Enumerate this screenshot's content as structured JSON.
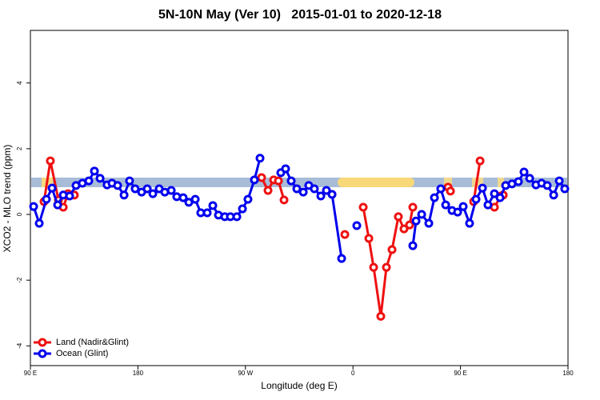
{
  "chart_data": {
    "type": "line",
    "title": "5N-10N May (Ver 10)   2015-01-01 to 2020-12-18",
    "x_label": "Longitude (deg E)",
    "y_label": "XCO2 - MLO trend (ppm)",
    "xlim": [
      90,
      540
    ],
    "ylim": [
      -4.6,
      5.6
    ],
    "xticks": [
      {
        "value": 90,
        "label": "90 E"
      },
      {
        "value": 180,
        "label": "180"
      },
      {
        "value": 270,
        "label": "90 W"
      },
      {
        "value": 360,
        "label": "0"
      },
      {
        "value": 450,
        "label": "90 E"
      },
      {
        "value": 540,
        "label": "180"
      }
    ],
    "yticks": [
      -4,
      -2,
      0,
      2,
      4
    ],
    "legend": "bottom-left",
    "series": [
      {
        "name": "Land (Nadir&Glint)",
        "color": "#ee1111",
        "x": [
          101.4,
          106.7,
          113.5,
          117.5,
          121.5,
          126.8,
          null,
          283.5,
          288.9,
          293.6,
          297.6,
          302.3,
          null,
          353.2,
          null,
          368.6,
          373.3,
          377.3,
          383.3,
          388,
          392.7,
          398,
          402.7,
          407.4,
          410.1,
          null,
          439.6,
          441.6,
          null,
          461,
          466.4,
          null,
          478.4,
          483.8,
          485.8
        ],
        "values": [
          0.39,
          1.63,
          0.44,
          0.22,
          0.63,
          0.59,
          null,
          1.12,
          0.73,
          1.05,
          1.02,
          0.44,
          null,
          -0.61,
          null,
          0.22,
          -0.73,
          -1.61,
          -3.1,
          -1.61,
          -1.07,
          -0.07,
          -0.44,
          -0.32,
          0.22,
          null,
          0.83,
          0.71,
          null,
          0.39,
          1.63,
          null,
          0.22,
          0.56,
          0.59
        ]
      },
      {
        "name": "Ocean (Glint)",
        "color": "#0000ee",
        "x": [
          92.7,
          97.4,
          103.4,
          108.1,
          112.8,
          117.5,
          122.8,
          128.2,
          133.5,
          138.9,
          143.6,
          148.3,
          154.2,
          158.3,
          163,
          168.4,
          173,
          177.7,
          183.1,
          187.8,
          192.5,
          197.8,
          202.5,
          207.9,
          212.5,
          217.9,
          222.6,
          228,
          232.6,
          238,
          242.7,
          247.4,
          252.7,
          257.4,
          262.8,
          267.5,
          272.1,
          277.5,
          282.2,
          null,
          299.6,
          303.6,
          308.3,
          313,
          318.4,
          323,
          327.7,
          333.1,
          337.8,
          342.5,
          350.5,
          null,
          363.2,
          null,
          410.1,
          412.8,
          417.5,
          423.5,
          428.2,
          433.5,
          437.6,
          442.9,
          447.6,
          452.3,
          457.6,
          463,
          468.4,
          473,
          478.4,
          483.1,
          487.8,
          493.1,
          498.5,
          503.2,
          507.9,
          513.2,
          517.9,
          522.6,
          528,
          532.7,
          537.3
        ],
        "values": [
          0.24,
          -0.27,
          0.46,
          0.8,
          0.29,
          0.59,
          0.56,
          0.88,
          0.95,
          1.02,
          1.32,
          1.1,
          0.9,
          0.95,
          0.88,
          0.59,
          1.02,
          0.78,
          0.68,
          0.78,
          0.63,
          0.78,
          0.68,
          0.73,
          0.54,
          0.51,
          0.37,
          0.46,
          0.05,
          0.05,
          0.27,
          -0.02,
          -0.07,
          -0.07,
          -0.07,
          0.17,
          0.46,
          1.05,
          1.71,
          null,
          1.27,
          1.39,
          1.02,
          0.78,
          0.68,
          0.88,
          0.78,
          0.56,
          0.73,
          0.61,
          -1.34,
          null,
          -0.34,
          null,
          -0.95,
          -0.2,
          0,
          -0.27,
          0.51,
          0.78,
          0.29,
          0.12,
          0.07,
          0.24,
          -0.27,
          0.46,
          0.8,
          0.29,
          0.63,
          0.51,
          0.88,
          0.93,
          1.0,
          1.29,
          1.1,
          0.9,
          0.95,
          0.88,
          0.59,
          1.02,
          0.78
        ]
      }
    ]
  }
}
